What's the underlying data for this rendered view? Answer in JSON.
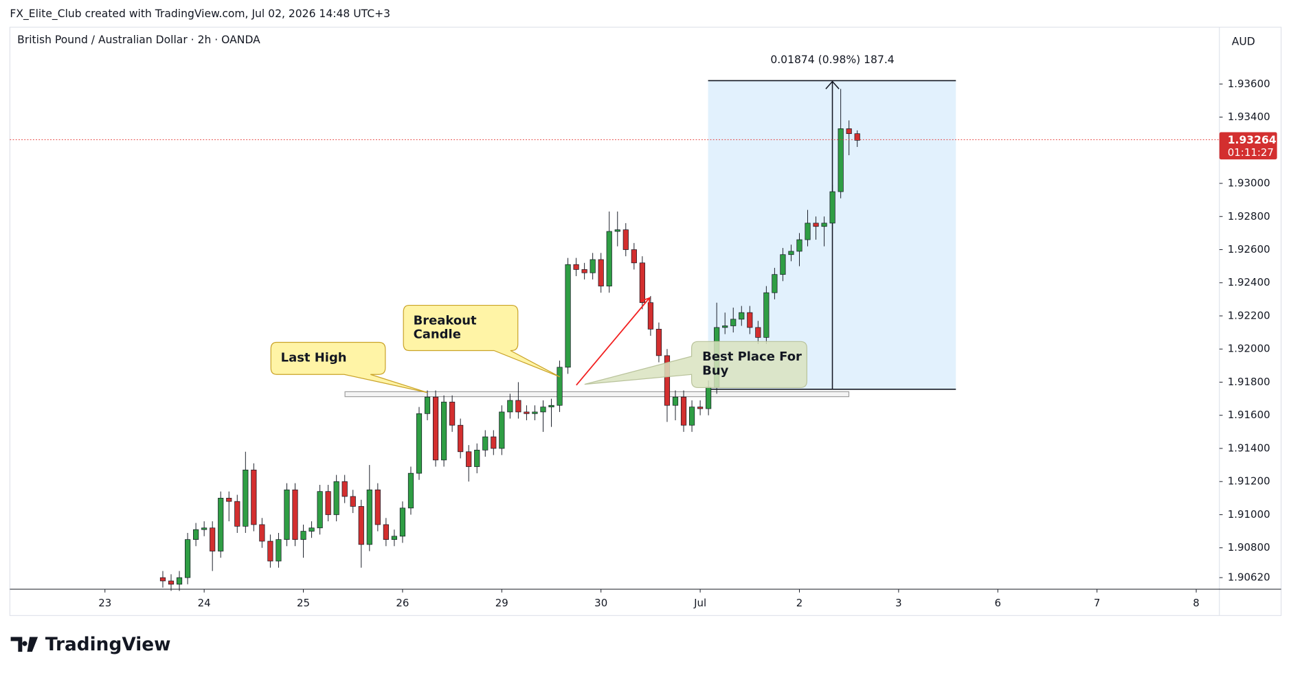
{
  "header": "FX_Elite_Club created with TradingView.com, Jul 02, 2026 14:48 UTC+3",
  "footer": {
    "logo": "TradingView"
  },
  "chart_data": {
    "type": "candlestick",
    "title": "British Pound / Australian Dollar · 2h · OANDA",
    "currency": "AUD",
    "last_price": 1.93264,
    "countdown": "01:11:27",
    "measure_label": "0.01874 (0.98%) 187.4",
    "annotations": {
      "last_high": "Last High",
      "breakout": [
        "Breakout",
        "Candle"
      ],
      "best_buy": [
        "Best Place For",
        "Buy"
      ]
    },
    "up_color": "#2f9e44",
    "down_color": "#d32f2f",
    "x": [
      7,
      8,
      9,
      10,
      11,
      12,
      13,
      14,
      15,
      16,
      17,
      18,
      19,
      20,
      21,
      22,
      23,
      24,
      25,
      26,
      27,
      28,
      29,
      30,
      31,
      32,
      33,
      34,
      35,
      36,
      37,
      38,
      39,
      40,
      41,
      42,
      43,
      44,
      45,
      46,
      47,
      48,
      49,
      50,
      51,
      52,
      53,
      54,
      55,
      56,
      57,
      58,
      59,
      60,
      61,
      62,
      63,
      64,
      65,
      66,
      67,
      68,
      69,
      70,
      71,
      72,
      73,
      74,
      75,
      76,
      77,
      78,
      79,
      80,
      81,
      82,
      83,
      84,
      85,
      86,
      87,
      88,
      89,
      90,
      91
    ],
    "open": [
      1.9062,
      1.906,
      1.9058,
      1.9062,
      1.9085,
      1.9091,
      1.9092,
      1.9078,
      1.911,
      1.9108,
      1.9093,
      1.9127,
      1.9094,
      1.9084,
      1.9072,
      1.9085,
      1.9115,
      1.9085,
      1.909,
      1.9092,
      1.9114,
      1.91,
      1.912,
      1.9111,
      1.9105,
      1.9082,
      1.9115,
      1.9094,
      1.9085,
      1.9087,
      1.9104,
      1.9125,
      1.9161,
      1.9171,
      1.9133,
      1.9168,
      1.9154,
      1.9138,
      1.9129,
      1.9139,
      1.9147,
      1.914,
      1.9162,
      1.9169,
      1.9162,
      1.9161,
      1.9162,
      1.9165,
      1.9166,
      1.9189,
      1.9251,
      1.9248,
      1.9246,
      1.9254,
      1.9238,
      1.9271,
      1.9272,
      1.926,
      1.9252,
      1.9228,
      1.9212,
      1.9196,
      1.9166,
      1.9171,
      1.9154,
      1.9165,
      1.9164,
      1.9177,
      1.9213,
      1.9214,
      1.9218,
      1.9222,
      1.9213,
      1.9207,
      1.9234,
      1.9245,
      1.9257,
      1.9259,
      1.9266,
      1.9276,
      1.9274,
      1.9276,
      1.9295,
      1.9333,
      1.933
    ],
    "high": [
      1.9066,
      1.9064,
      1.9066,
      1.9089,
      1.9095,
      1.9096,
      1.9096,
      1.9114,
      1.9114,
      1.9112,
      1.9138,
      1.9131,
      1.9098,
      1.9088,
      1.9089,
      1.9119,
      1.9119,
      1.9094,
      1.9096,
      1.9118,
      1.9118,
      1.9124,
      1.9124,
      1.9115,
      1.9109,
      1.913,
      1.9119,
      1.9098,
      1.9091,
      1.9108,
      1.9129,
      1.9165,
      1.9175,
      1.9175,
      1.9172,
      1.9172,
      1.9158,
      1.9142,
      1.9143,
      1.9151,
      1.9151,
      1.9166,
      1.9173,
      1.918,
      1.9166,
      1.9166,
      1.9169,
      1.917,
      1.9193,
      1.9255,
      1.9255,
      1.9252,
      1.9258,
      1.9258,
      1.9283,
      1.9283,
      1.9276,
      1.9264,
      1.9256,
      1.9232,
      1.9216,
      1.92,
      1.9175,
      1.9175,
      1.9169,
      1.9169,
      1.9181,
      1.9228,
      1.9222,
      1.9225,
      1.9226,
      1.9226,
      1.9217,
      1.9238,
      1.9249,
      1.9261,
      1.9263,
      1.927,
      1.9284,
      1.928,
      1.928,
      1.9299,
      1.9357,
      1.9338,
      1.9332
    ],
    "low": [
      1.9056,
      1.9054,
      1.9054,
      1.9058,
      1.9081,
      1.9087,
      1.9066,
      1.9074,
      1.9096,
      1.9089,
      1.9089,
      1.909,
      1.908,
      1.9068,
      1.9068,
      1.9081,
      1.9081,
      1.9074,
      1.9086,
      1.9088,
      1.9096,
      1.9096,
      1.9107,
      1.9101,
      1.9068,
      1.9078,
      1.909,
      1.9081,
      1.9081,
      1.9083,
      1.91,
      1.9121,
      1.9157,
      1.9129,
      1.9129,
      1.915,
      1.9134,
      1.912,
      1.9125,
      1.9135,
      1.9136,
      1.9136,
      1.9158,
      1.9158,
      1.9157,
      1.9157,
      1.915,
      1.9153,
      1.9162,
      1.9185,
      1.9244,
      1.9242,
      1.9242,
      1.9234,
      1.9234,
      1.9262,
      1.9256,
      1.9248,
      1.9224,
      1.9208,
      1.9192,
      1.9156,
      1.9157,
      1.915,
      1.915,
      1.916,
      1.916,
      1.9173,
      1.9209,
      1.921,
      1.9214,
      1.9209,
      1.9203,
      1.9203,
      1.923,
      1.9241,
      1.9253,
      1.925,
      1.9262,
      1.9266,
      1.9262,
      1.9272,
      1.9291,
      1.9317,
      1.9322
    ],
    "close": [
      1.906,
      1.9058,
      1.9062,
      1.9085,
      1.9091,
      1.9092,
      1.9078,
      1.911,
      1.9108,
      1.9093,
      1.9127,
      1.9094,
      1.9084,
      1.9072,
      1.9085,
      1.9115,
      1.9085,
      1.909,
      1.9092,
      1.9114,
      1.91,
      1.912,
      1.9111,
      1.9105,
      1.9082,
      1.9115,
      1.9094,
      1.9085,
      1.9087,
      1.9104,
      1.9125,
      1.9161,
      1.9171,
      1.9133,
      1.9168,
      1.9154,
      1.9138,
      1.9129,
      1.9139,
      1.9147,
      1.914,
      1.9162,
      1.9169,
      1.9162,
      1.9161,
      1.9162,
      1.9165,
      1.9166,
      1.9189,
      1.9251,
      1.9248,
      1.9246,
      1.9254,
      1.9238,
      1.9271,
      1.9272,
      1.926,
      1.9252,
      1.9228,
      1.9212,
      1.9196,
      1.9166,
      1.9171,
      1.9154,
      1.9165,
      1.9164,
      1.9177,
      1.9213,
      1.9214,
      1.9218,
      1.9222,
      1.9213,
      1.9207,
      1.9234,
      1.9245,
      1.9257,
      1.9259,
      1.9266,
      1.9276,
      1.9274,
      1.9276,
      1.9295,
      1.9333,
      1.933,
      1.9326
    ],
    "xlim": [
      -11.5,
      134.8
    ],
    "xticks": [
      {
        "value": 0,
        "label": "23"
      },
      {
        "value": 12,
        "label": "24"
      },
      {
        "value": 24,
        "label": "25"
      },
      {
        "value": 36,
        "label": "26"
      },
      {
        "value": 48,
        "label": "29"
      },
      {
        "value": 60,
        "label": "30"
      },
      {
        "value": 72,
        "label": "Jul"
      },
      {
        "value": 84,
        "label": "2"
      },
      {
        "value": 96,
        "label": "3"
      },
      {
        "value": 108,
        "label": "6"
      },
      {
        "value": 120,
        "label": "7"
      },
      {
        "value": 132,
        "label": "8"
      }
    ],
    "ylim": [
      1.9055,
      1.93943
    ],
    "yticks": [
      {
        "value": 1.936,
        "label": "1.93600"
      },
      {
        "value": 1.934,
        "label": "1.93400"
      },
      {
        "value": 1.93,
        "label": "1.93000"
      },
      {
        "value": 1.928,
        "label": "1.92800"
      },
      {
        "value": 1.926,
        "label": "1.92600"
      },
      {
        "value": 1.924,
        "label": "1.92400"
      },
      {
        "value": 1.922,
        "label": "1.92200"
      },
      {
        "value": 1.92,
        "label": "1.92000"
      },
      {
        "value": 1.918,
        "label": "1.91800"
      },
      {
        "value": 1.916,
        "label": "1.91600"
      },
      {
        "value": 1.914,
        "label": "1.91400"
      },
      {
        "value": 1.912,
        "label": "1.91200"
      },
      {
        "value": 1.91,
        "label": "1.91000"
      },
      {
        "value": 1.908,
        "label": "1.90800"
      },
      {
        "value": 1.9062,
        "label": "1.90620"
      }
    ]
  }
}
